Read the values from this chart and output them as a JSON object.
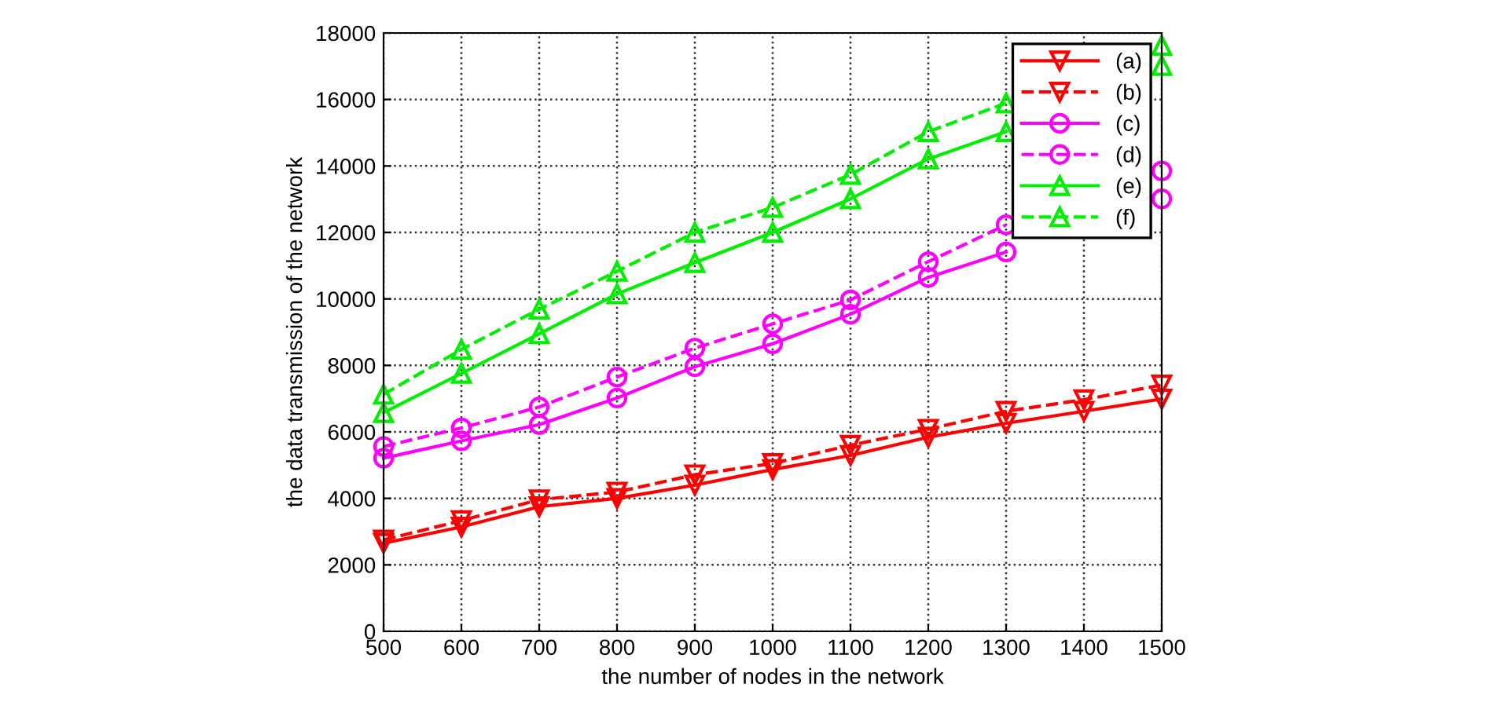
{
  "chart_data": {
    "type": "line",
    "xlabel": "the number of nodes in the network",
    "ylabel": "the data transmission of the network",
    "x": [
      500,
      600,
      700,
      800,
      900,
      1000,
      1100,
      1200,
      1300,
      1400,
      1500
    ],
    "xlim": [
      500,
      1500
    ],
    "xticks": [
      500,
      600,
      700,
      800,
      900,
      1000,
      1100,
      1200,
      1300,
      1400,
      1500
    ],
    "ylim": [
      0,
      18000
    ],
    "yticks": [
      0,
      2000,
      4000,
      6000,
      8000,
      10000,
      12000,
      14000,
      16000,
      18000
    ],
    "grid": true,
    "legend": "top right",
    "series": [
      {
        "name": "(a)",
        "color": "#ff0000",
        "marker": "triangle_down",
        "line_style": "solid",
        "values": [
          2650,
          3140,
          3750,
          4000,
          4400,
          4870,
          5290,
          5840,
          6260,
          6620,
          6990
        ]
      },
      {
        "name": "(b)",
        "color": "#ff0000",
        "marker": "triangle_down",
        "line_style": "dashed",
        "values": [
          2750,
          3330,
          3960,
          4190,
          4710,
          5050,
          5600,
          6080,
          6620,
          6970,
          7410
        ]
      },
      {
        "name": "(c)",
        "color": "#ff00ff",
        "marker": "circle",
        "line_style": "solid",
        "values": [
          5210,
          5730,
          6220,
          7020,
          7960,
          8650,
          9540,
          10650,
          11410,
          null,
          13010
        ]
      },
      {
        "name": "(d)",
        "color": "#ff00ff",
        "marker": "circle",
        "line_style": "dashed",
        "values": [
          5560,
          6120,
          6750,
          7650,
          8520,
          9250,
          9970,
          11120,
          12230,
          null,
          13850
        ]
      },
      {
        "name": "(e)",
        "color": "#00ee00",
        "marker": "triangle",
        "line_style": "solid",
        "values": [
          6580,
          7760,
          8950,
          10150,
          11090,
          12000,
          13010,
          14210,
          15030,
          null,
          17020
        ]
      },
      {
        "name": "(f)",
        "color": "#00ee00",
        "marker": "triangle",
        "line_style": "dashed",
        "values": [
          7130,
          8480,
          9690,
          10830,
          12000,
          12750,
          13740,
          15030,
          15890,
          null,
          17620
        ]
      }
    ]
  }
}
